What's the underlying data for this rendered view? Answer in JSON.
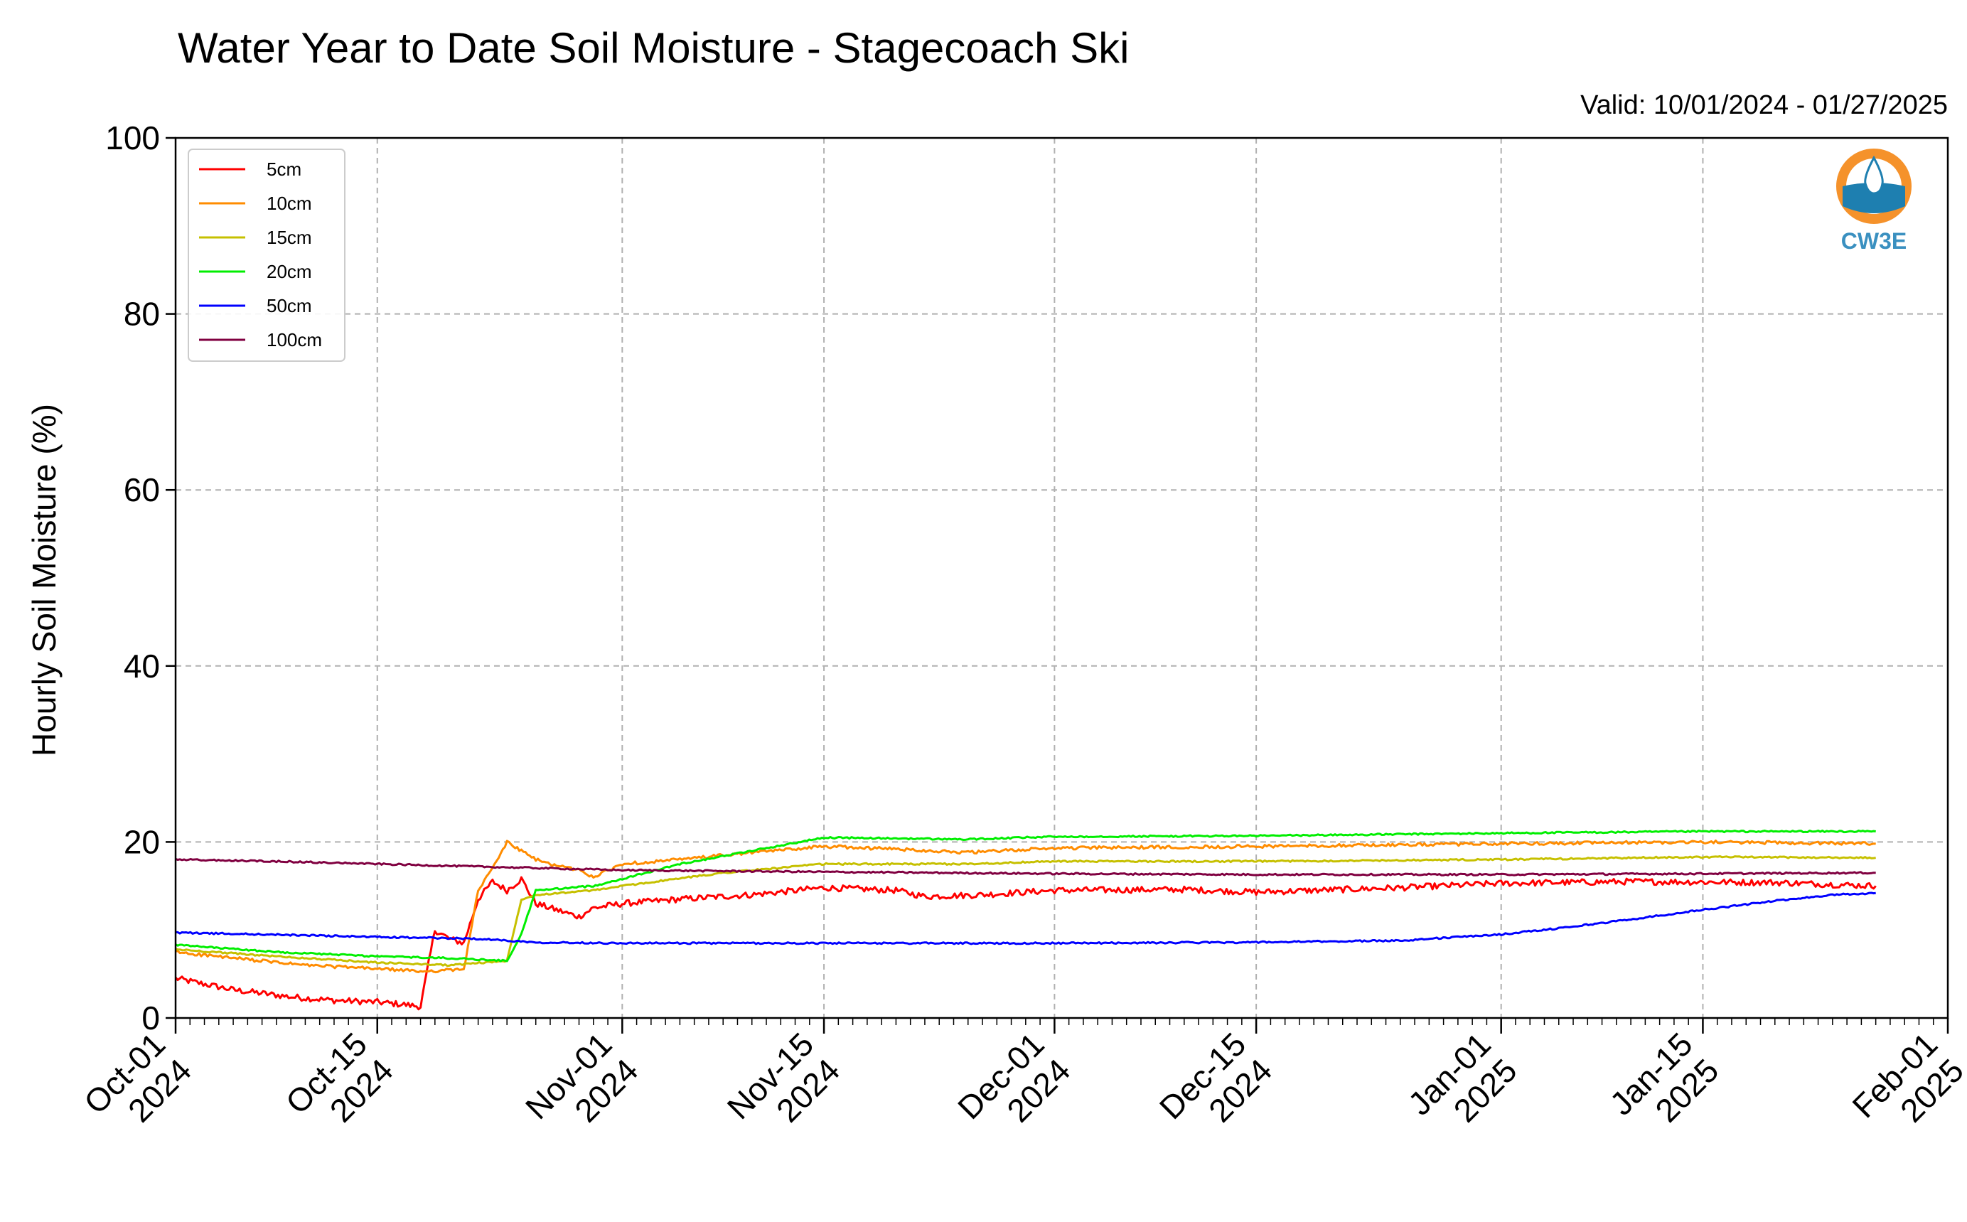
{
  "chart_data": {
    "type": "line",
    "title": "Water Year to Date Soil Moisture - Stagecoach Ski",
    "subtitle": "Valid: 10/01/2024 - 01/27/2025",
    "ylabel": "Hourly Soil Moisture (%)",
    "xlabel": "",
    "ylim": [
      0,
      100
    ],
    "xlim": [
      "2024-10-01",
      "2025-02-01"
    ],
    "grid": true,
    "legend_position": "top-left",
    "y_ticks": [
      "0",
      "20",
      "40",
      "60",
      "80",
      "100"
    ],
    "x_ticks": [
      {
        "date": "2024-10-01",
        "line1": "Oct-01",
        "line2": "2024"
      },
      {
        "date": "2024-10-15",
        "line1": "Oct-15",
        "line2": "2024"
      },
      {
        "date": "2024-11-01",
        "line1": "Nov-01",
        "line2": "2024"
      },
      {
        "date": "2024-11-15",
        "line1": "Nov-15",
        "line2": "2024"
      },
      {
        "date": "2024-12-01",
        "line1": "Dec-01",
        "line2": "2024"
      },
      {
        "date": "2024-12-15",
        "line1": "Dec-15",
        "line2": "2024"
      },
      {
        "date": "2025-01-01",
        "line1": "Jan-01",
        "line2": "2025"
      },
      {
        "date": "2025-01-15",
        "line1": "Jan-15",
        "line2": "2025"
      },
      {
        "date": "2025-02-01",
        "line1": "Feb-01",
        "line2": "2025"
      }
    ],
    "series": [
      {
        "name": "5cm",
        "color": "#ff0000",
        "points": [
          [
            "2024-10-01",
            4.5
          ],
          [
            "2024-10-05",
            3.2
          ],
          [
            "2024-10-09",
            2.4
          ],
          [
            "2024-10-12",
            2.0
          ],
          [
            "2024-10-15",
            1.8
          ],
          [
            "2024-10-17",
            1.5
          ],
          [
            "2024-10-18",
            1.3
          ],
          [
            "2024-10-19",
            10.0
          ],
          [
            "2024-10-20",
            9.0
          ],
          [
            "2024-10-21",
            8.5
          ],
          [
            "2024-10-22",
            13.5
          ],
          [
            "2024-10-23",
            15.5
          ],
          [
            "2024-10-24",
            14.5
          ],
          [
            "2024-10-25",
            15.8
          ],
          [
            "2024-10-26",
            13.0
          ],
          [
            "2024-10-27",
            12.5
          ],
          [
            "2024-10-29",
            11.5
          ],
          [
            "2024-10-30",
            12.5
          ],
          [
            "2024-11-01",
            13.0
          ],
          [
            "2024-11-05",
            13.5
          ],
          [
            "2024-11-10",
            14.0
          ],
          [
            "2024-11-15",
            14.8
          ],
          [
            "2024-11-20",
            14.5
          ],
          [
            "2024-11-22",
            13.8
          ],
          [
            "2024-11-26",
            14.0
          ],
          [
            "2024-12-01",
            14.5
          ],
          [
            "2024-12-10",
            14.6
          ],
          [
            "2024-12-15",
            14.3
          ],
          [
            "2024-12-25",
            14.8
          ],
          [
            "2025-01-01",
            15.3
          ],
          [
            "2025-01-10",
            15.5
          ],
          [
            "2025-01-20",
            15.4
          ],
          [
            "2025-01-27",
            15.0
          ]
        ]
      },
      {
        "name": "10cm",
        "color": "#ff8c00",
        "points": [
          [
            "2024-10-01",
            7.5
          ],
          [
            "2024-10-05",
            6.8
          ],
          [
            "2024-10-10",
            6.0
          ],
          [
            "2024-10-15",
            5.6
          ],
          [
            "2024-10-18",
            5.3
          ],
          [
            "2024-10-21",
            5.5
          ],
          [
            "2024-10-22",
            14.5
          ],
          [
            "2024-10-23",
            17.0
          ],
          [
            "2024-10-24",
            20.0
          ],
          [
            "2024-10-25",
            19.0
          ],
          [
            "2024-10-26",
            18.0
          ],
          [
            "2024-10-27",
            17.5
          ],
          [
            "2024-10-29",
            16.8
          ],
          [
            "2024-10-30",
            16.0
          ],
          [
            "2024-11-01",
            17.5
          ],
          [
            "2024-11-05",
            18.0
          ],
          [
            "2024-11-10",
            18.8
          ],
          [
            "2024-11-15",
            19.5
          ],
          [
            "2024-11-20",
            19.2
          ],
          [
            "2024-11-25",
            18.8
          ],
          [
            "2024-12-01",
            19.3
          ],
          [
            "2024-12-15",
            19.5
          ],
          [
            "2025-01-01",
            19.8
          ],
          [
            "2025-01-15",
            20.0
          ],
          [
            "2025-01-27",
            19.8
          ]
        ]
      },
      {
        "name": "15cm",
        "color": "#c6c000",
        "points": [
          [
            "2024-10-01",
            7.8
          ],
          [
            "2024-10-08",
            7.0
          ],
          [
            "2024-10-15",
            6.3
          ],
          [
            "2024-10-20",
            6.0
          ],
          [
            "2024-10-24",
            6.5
          ],
          [
            "2024-10-25",
            13.5
          ],
          [
            "2024-10-26",
            14.0
          ],
          [
            "2024-10-30",
            14.5
          ],
          [
            "2024-11-01",
            15.0
          ],
          [
            "2024-11-08",
            16.5
          ],
          [
            "2024-11-15",
            17.5
          ],
          [
            "2024-11-25",
            17.5
          ],
          [
            "2024-12-01",
            17.8
          ],
          [
            "2024-12-15",
            17.8
          ],
          [
            "2025-01-01",
            18.0
          ],
          [
            "2025-01-15",
            18.3
          ],
          [
            "2025-01-27",
            18.2
          ]
        ]
      },
      {
        "name": "20cm",
        "color": "#00ee00",
        "points": [
          [
            "2024-10-01",
            8.3
          ],
          [
            "2024-10-08",
            7.5
          ],
          [
            "2024-10-15",
            7.0
          ],
          [
            "2024-10-20",
            6.8
          ],
          [
            "2024-10-24",
            6.5
          ],
          [
            "2024-10-25",
            9.5
          ],
          [
            "2024-10-26",
            14.5
          ],
          [
            "2024-10-30",
            15.0
          ],
          [
            "2024-11-01",
            15.8
          ],
          [
            "2024-11-05",
            17.5
          ],
          [
            "2024-11-10",
            19.0
          ],
          [
            "2024-11-15",
            20.5
          ],
          [
            "2024-11-25",
            20.3
          ],
          [
            "2024-12-01",
            20.6
          ],
          [
            "2024-12-15",
            20.7
          ],
          [
            "2025-01-01",
            21.0
          ],
          [
            "2025-01-15",
            21.2
          ],
          [
            "2025-01-27",
            21.2
          ]
        ]
      },
      {
        "name": "50cm",
        "color": "#0000ff",
        "points": [
          [
            "2024-10-01",
            9.7
          ],
          [
            "2024-10-10",
            9.4
          ],
          [
            "2024-10-15",
            9.2
          ],
          [
            "2024-10-22",
            9.0
          ],
          [
            "2024-10-26",
            8.6
          ],
          [
            "2024-11-01",
            8.5
          ],
          [
            "2024-11-15",
            8.5
          ],
          [
            "2024-12-01",
            8.5
          ],
          [
            "2024-12-15",
            8.6
          ],
          [
            "2024-12-25",
            8.8
          ],
          [
            "2025-01-01",
            9.5
          ],
          [
            "2025-01-05",
            10.2
          ],
          [
            "2025-01-10",
            11.2
          ],
          [
            "2025-01-15",
            12.3
          ],
          [
            "2025-01-20",
            13.3
          ],
          [
            "2025-01-24",
            14.0
          ],
          [
            "2025-01-27",
            14.2
          ]
        ]
      },
      {
        "name": "100cm",
        "color": "#800040",
        "points": [
          [
            "2024-10-01",
            18.0
          ],
          [
            "2024-10-08",
            17.8
          ],
          [
            "2024-10-15",
            17.5
          ],
          [
            "2024-10-22",
            17.2
          ],
          [
            "2024-11-01",
            16.8
          ],
          [
            "2024-11-15",
            16.6
          ],
          [
            "2024-12-01",
            16.4
          ],
          [
            "2024-12-15",
            16.3
          ],
          [
            "2025-01-01",
            16.3
          ],
          [
            "2025-01-15",
            16.4
          ],
          [
            "2025-01-27",
            16.5
          ]
        ]
      }
    ]
  },
  "logo": {
    "text": "CW3E",
    "icon": "water-drop-logo-icon",
    "ring_color": "#f5922b",
    "text_color": "#3a90c0"
  }
}
